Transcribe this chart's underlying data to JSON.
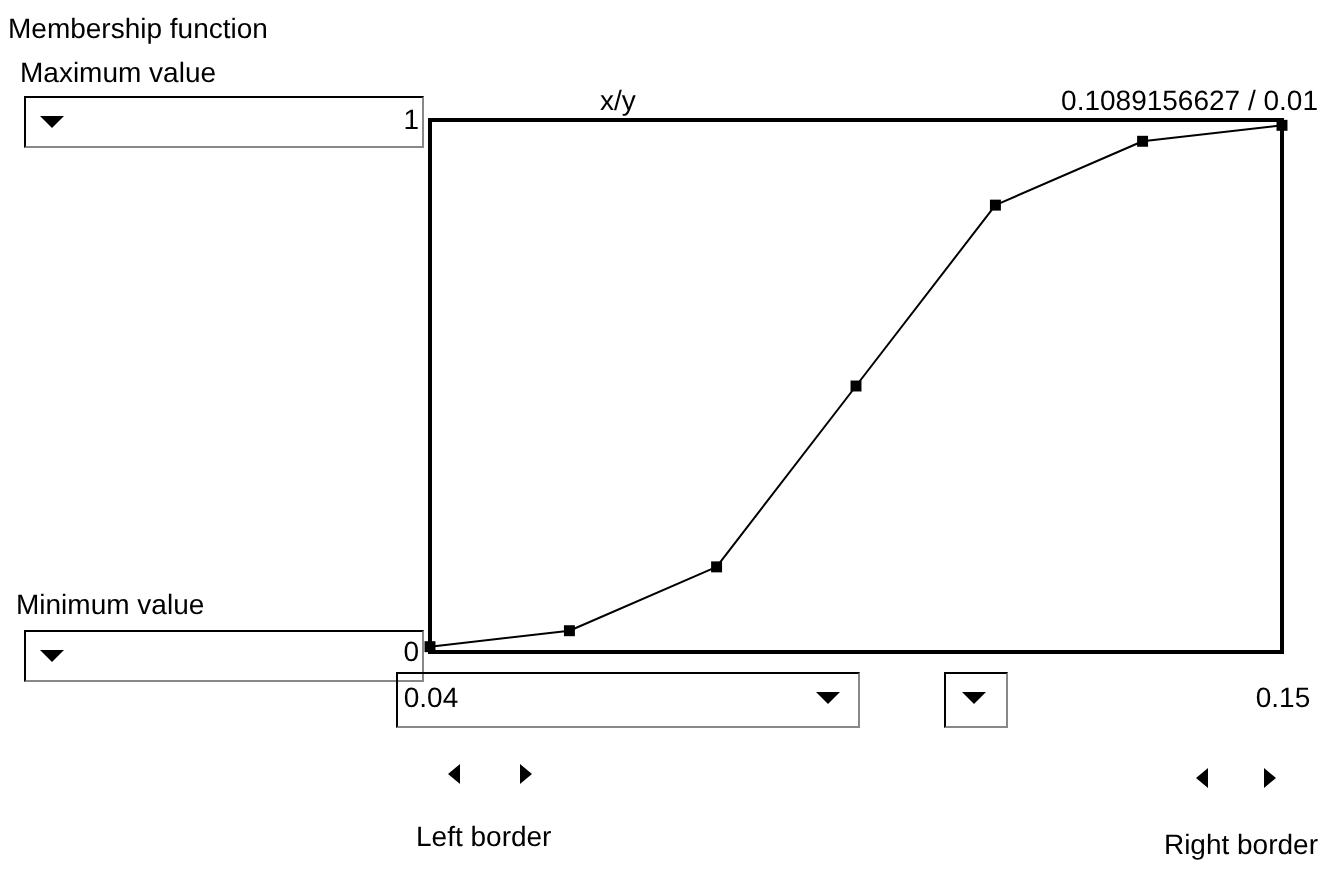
{
  "chart_data": {
    "type": "line",
    "title": "Membership function",
    "x": [
      0.04,
      0.058,
      0.077,
      0.095,
      0.113,
      0.132,
      0.15
    ],
    "series": [
      {
        "color": "#000000",
        "values": [
          0.01,
          0.04,
          0.16,
          0.5,
          0.84,
          0.96,
          0.99
        ]
      }
    ],
    "xlim": [
      0.04,
      0.15
    ],
    "xticks": [
      0.04,
      0.15
    ],
    "ylim": [
      0,
      1
    ],
    "yticks": [
      1,
      0
    ],
    "marker": "square",
    "line_style": "solid",
    "grid": false,
    "legend": false,
    "annotations": [
      "Maximum value",
      "Minimum value",
      "x/y",
      "0.1089156627 / 0.01",
      "Left border",
      "Right border"
    ]
  }
}
